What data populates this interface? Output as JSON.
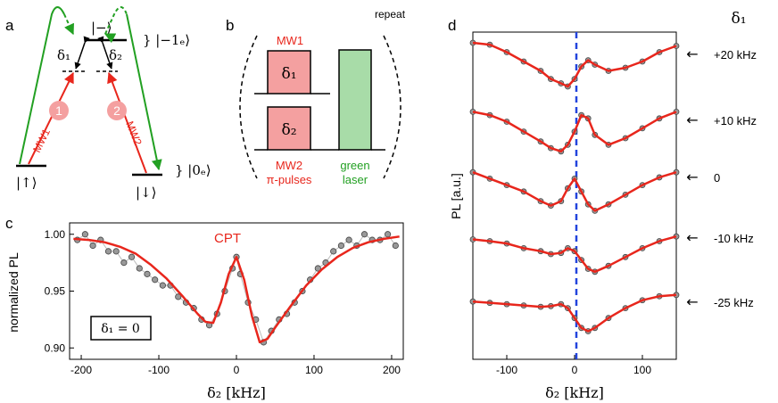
{
  "panel_labels": {
    "a": "a",
    "b": "b",
    "c": "c",
    "d": "d"
  },
  "panel_a": {
    "state_minus": "|−⟩",
    "minus1e": "} |−1ₑ⟩",
    "zero_e": "} |0ₑ⟩",
    "up_state": "|↑⟩",
    "down_state": "|↓⟩",
    "delta1": "δ₁",
    "delta2": "δ₂",
    "circle1": "1",
    "circle2": "2",
    "mw1": "MW1",
    "mw2": "MW2",
    "colors": {
      "red": "#e8261c",
      "green": "#22a022",
      "pink": "#f4a0a0"
    }
  },
  "panel_b": {
    "repeat": "repeat",
    "mw1": "MW1",
    "delta1": "δ₁",
    "delta2": "δ₂",
    "mw2_line1": "MW2",
    "mw2_line2": "π-pulses",
    "green_line1": "green",
    "green_line2": "laser",
    "colors": {
      "pulse": "#f4a0a0",
      "laser": "#a8dca8",
      "text_red": "#e8261c",
      "text_green": "#22a022"
    }
  },
  "panel_c_text": {
    "inset": "δ₁ = 0",
    "cpt_label": "CPT"
  },
  "panel_d_text": {
    "delta1_header": "δ₁",
    "arrow": "←"
  },
  "chart_data": [
    {
      "type": "scatter",
      "title": "",
      "xlabel": "δ₂ [kHz]",
      "ylabel": "normalized PL",
      "xlim": [
        -215,
        215
      ],
      "ylim": [
        0.89,
        1.01
      ],
      "xticks": [
        -200,
        -100,
        0,
        100,
        200
      ],
      "yticks": [
        0.9,
        0.95,
        1.0
      ],
      "ytick_labels": [
        "0.90",
        "0.95",
        "1.00"
      ],
      "series": [
        {
          "name": "data",
          "style": "gray-markers",
          "x": [
            -205,
            -195,
            -185,
            -175,
            -165,
            -155,
            -145,
            -135,
            -125,
            -115,
            -105,
            -95,
            -85,
            -75,
            -65,
            -55,
            -45,
            -35,
            -25,
            -15,
            -5,
            0,
            5,
            15,
            25,
            35,
            45,
            55,
            65,
            75,
            85,
            95,
            105,
            115,
            125,
            135,
            145,
            155,
            165,
            175,
            185,
            195,
            205
          ],
          "y": [
            0.995,
            1.0,
            0.99,
            0.995,
            0.985,
            0.985,
            0.975,
            0.98,
            0.97,
            0.965,
            0.96,
            0.955,
            0.955,
            0.945,
            0.94,
            0.935,
            0.925,
            0.92,
            0.93,
            0.95,
            0.97,
            0.98,
            0.965,
            0.94,
            0.925,
            0.905,
            0.915,
            0.925,
            0.93,
            0.94,
            0.95,
            0.96,
            0.97,
            0.975,
            0.985,
            0.99,
            0.995,
            0.99,
            1.0,
            0.995,
            0.995,
            1.0,
            0.99
          ]
        },
        {
          "name": "fit",
          "style": "red-line",
          "x": [
            -210,
            -190,
            -170,
            -150,
            -130,
            -110,
            -90,
            -70,
            -50,
            -40,
            -30,
            -20,
            -10,
            0,
            10,
            20,
            30,
            40,
            50,
            70,
            90,
            110,
            130,
            150,
            170,
            190,
            210
          ],
          "y": [
            0.996,
            0.995,
            0.993,
            0.989,
            0.983,
            0.973,
            0.961,
            0.946,
            0.93,
            0.923,
            0.922,
            0.94,
            0.965,
            0.98,
            0.96,
            0.928,
            0.905,
            0.908,
            0.918,
            0.937,
            0.955,
            0.969,
            0.98,
            0.988,
            0.993,
            0.996,
            0.998
          ]
        }
      ],
      "annotations": [
        "CPT",
        "δ₁ = 0"
      ]
    },
    {
      "type": "scatter",
      "title": "",
      "xlabel": "δ₂ [kHz]",
      "ylabel": "PL [a.u.]",
      "xlim": [
        -150,
        150
      ],
      "xticks": [
        -100,
        0,
        100
      ],
      "vertical_line": {
        "x": 0,
        "style": "blue-dashed"
      },
      "series": [
        {
          "name": "+20 kHz",
          "x": [
            -150,
            -125,
            -100,
            -75,
            -50,
            -35,
            -20,
            -10,
            0,
            10,
            20,
            30,
            50,
            75,
            100,
            125,
            150
          ],
          "y": [
            1.0,
            0.97,
            0.85,
            0.7,
            0.55,
            0.42,
            0.35,
            0.3,
            0.42,
            0.62,
            0.72,
            0.65,
            0.55,
            0.6,
            0.7,
            0.85,
            0.95
          ]
        },
        {
          "name": "+10 kHz",
          "x": [
            -150,
            -125,
            -100,
            -75,
            -50,
            -35,
            -20,
            -10,
            0,
            10,
            20,
            30,
            50,
            75,
            100,
            125,
            150
          ],
          "y": [
            0.9,
            0.85,
            0.75,
            0.6,
            0.45,
            0.35,
            0.3,
            0.4,
            0.6,
            0.85,
            0.8,
            0.55,
            0.4,
            0.5,
            0.65,
            0.8,
            0.9
          ]
        },
        {
          "name": "0",
          "x": [
            -150,
            -125,
            -100,
            -75,
            -50,
            -35,
            -20,
            -10,
            0,
            10,
            20,
            30,
            50,
            75,
            100,
            125,
            150
          ],
          "y": [
            0.9,
            0.8,
            0.7,
            0.6,
            0.45,
            0.38,
            0.45,
            0.65,
            0.8,
            0.6,
            0.4,
            0.3,
            0.4,
            0.55,
            0.7,
            0.82,
            0.9
          ]
        },
        {
          "name": "-10 kHz",
          "x": [
            -150,
            -125,
            -100,
            -75,
            -50,
            -35,
            -20,
            -10,
            0,
            10,
            20,
            30,
            50,
            75,
            100,
            125,
            150
          ],
          "y": [
            0.75,
            0.72,
            0.68,
            0.6,
            0.55,
            0.5,
            0.52,
            0.6,
            0.55,
            0.4,
            0.25,
            0.2,
            0.3,
            0.45,
            0.6,
            0.72,
            0.8
          ]
        },
        {
          "name": "-25 kHz",
          "x": [
            -150,
            -125,
            -100,
            -75,
            -50,
            -35,
            -20,
            -10,
            0,
            10,
            20,
            30,
            50,
            75,
            100,
            125,
            150
          ],
          "y": [
            0.7,
            0.68,
            0.66,
            0.64,
            0.62,
            0.63,
            0.66,
            0.6,
            0.45,
            0.3,
            0.25,
            0.3,
            0.45,
            0.6,
            0.72,
            0.78,
            0.8
          ]
        }
      ]
    }
  ]
}
